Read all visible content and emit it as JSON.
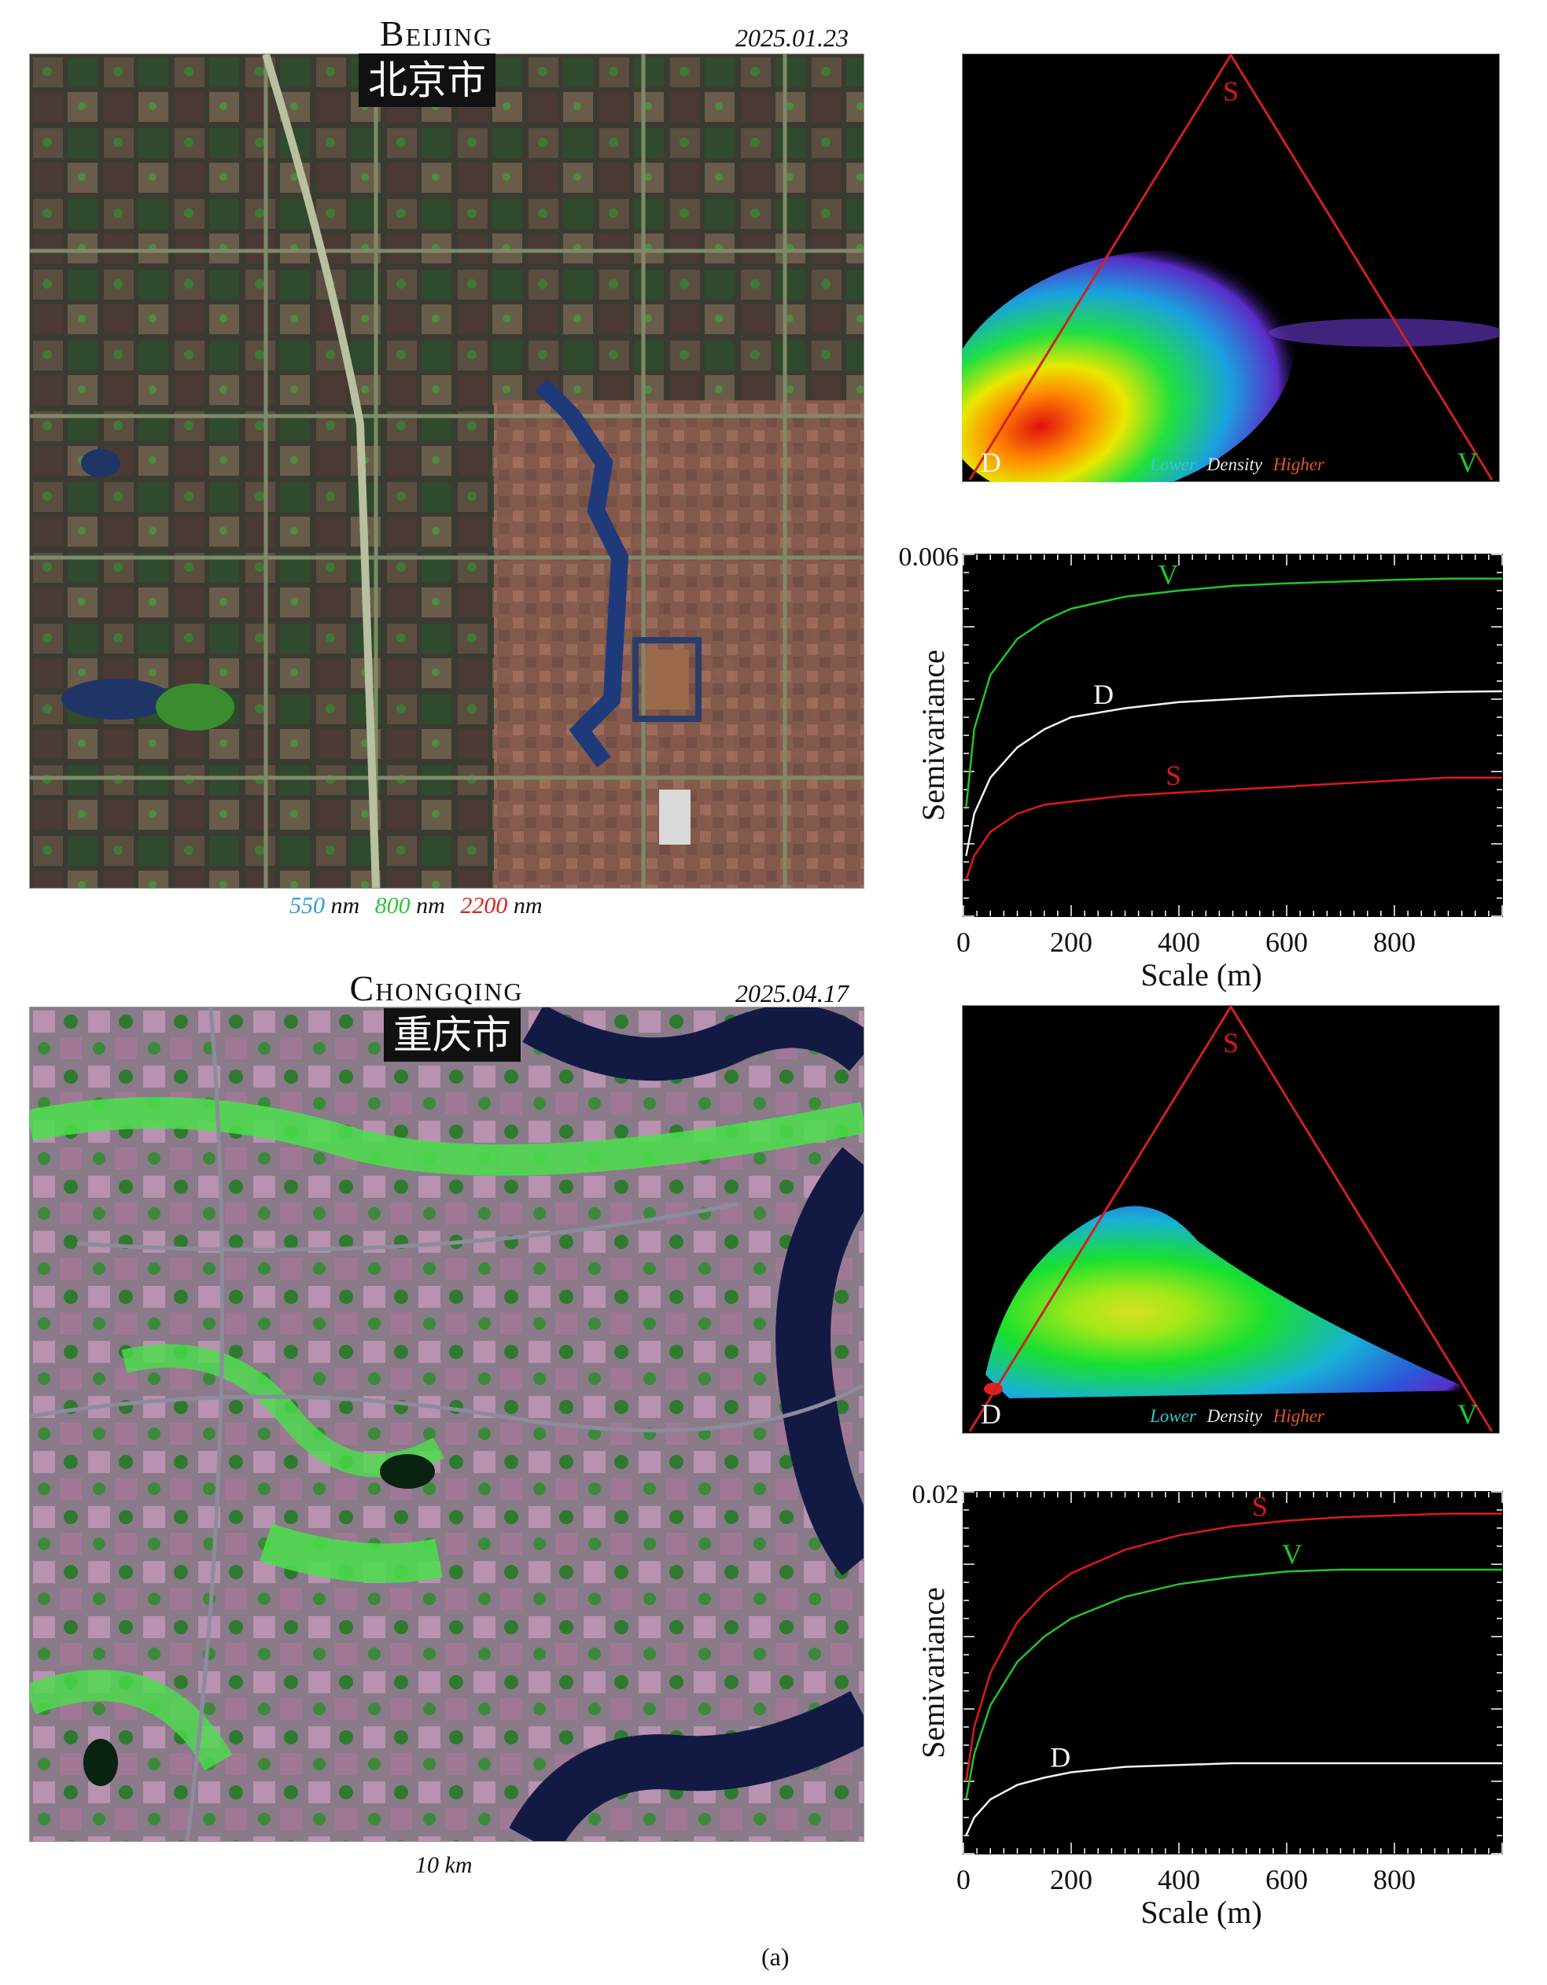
{
  "colors": {
    "S": "#e01818",
    "V": "#22c42a",
    "D": "#f2f2f2",
    "lower": "#33cccc",
    "density": "#e8e8e8",
    "higher": "#e2542a"
  },
  "panels": [
    {
      "city_en": "Beijing",
      "city_zh": "北京市",
      "date": "2025.01.23",
      "map_image": "false-color satellite image of central Beijing",
      "bands": {
        "b1": "550",
        "b2": "800",
        "b3": "2200",
        "unit": "nm"
      },
      "ternary": {
        "apex_top": "S",
        "left": "D",
        "right": "V",
        "legend_lower": "Lower",
        "legend_density": "Density",
        "legend_higher": "Higher"
      }
    },
    {
      "city_en": "Chongqing",
      "city_zh": "重庆市",
      "date": "2025.04.17",
      "map_image": "false-color satellite image of central Chongqing",
      "scale_bar": "10 km",
      "ternary": {
        "apex_top": "S",
        "left": "D",
        "right": "V",
        "legend_lower": "Lower",
        "legend_density": "Density",
        "legend_higher": "Higher"
      }
    }
  ],
  "chart_data": [
    {
      "type": "line",
      "xlabel": "Scale (m)",
      "ylabel": "Semivariance",
      "xlim": [
        0,
        1000
      ],
      "ylim": [
        0,
        0.006
      ],
      "xticks": [
        0,
        200,
        400,
        600,
        800
      ],
      "ytick_label": "0.006",
      "x": [
        5,
        20,
        50,
        100,
        150,
        200,
        300,
        400,
        500,
        600,
        700,
        800,
        900,
        1000
      ],
      "series": [
        {
          "name": "V",
          "values": [
            0.0018,
            0.0031,
            0.004,
            0.0046,
            0.0049,
            0.0051,
            0.0053,
            0.0054,
            0.00548,
            0.00552,
            0.00555,
            0.00558,
            0.0056,
            0.0056
          ]
        },
        {
          "name": "D",
          "values": [
            0.001,
            0.0017,
            0.0023,
            0.0028,
            0.0031,
            0.0033,
            0.00345,
            0.00355,
            0.0036,
            0.00365,
            0.00368,
            0.0037,
            0.00372,
            0.00373
          ]
        },
        {
          "name": "S",
          "values": [
            0.0006,
            0.001,
            0.0014,
            0.0017,
            0.00185,
            0.0019,
            0.002,
            0.00205,
            0.0021,
            0.00215,
            0.0022,
            0.00225,
            0.0023,
            0.0023
          ]
        }
      ],
      "label_positions": {
        "V": 380,
        "D": 260,
        "S": 390
      }
    },
    {
      "type": "line",
      "xlabel": "Scale (m)",
      "ylabel": "Semivariance",
      "xlim": [
        0,
        1000
      ],
      "ylim": [
        0,
        0.02
      ],
      "xticks": [
        0,
        200,
        400,
        600,
        800
      ],
      "ytick_label": "0.02",
      "x": [
        5,
        20,
        50,
        100,
        150,
        200,
        300,
        400,
        500,
        600,
        700,
        800,
        900,
        1000
      ],
      "series": [
        {
          "name": "S",
          "values": [
            0.004,
            0.007,
            0.01,
            0.0128,
            0.0144,
            0.0155,
            0.0168,
            0.0176,
            0.0181,
            0.0184,
            0.0186,
            0.0187,
            0.0188,
            0.0188
          ]
        },
        {
          "name": "V",
          "values": [
            0.003,
            0.0055,
            0.0082,
            0.0106,
            0.012,
            0.013,
            0.0142,
            0.0149,
            0.0153,
            0.0156,
            0.0157,
            0.0157,
            0.0157,
            0.0157
          ]
        },
        {
          "name": "D",
          "values": [
            0.001,
            0.002,
            0.003,
            0.0038,
            0.0042,
            0.0045,
            0.0048,
            0.0049,
            0.005,
            0.005,
            0.005,
            0.005,
            0.005,
            0.005
          ]
        }
      ],
      "label_positions": {
        "S": 550,
        "V": 610,
        "D": 180
      }
    }
  ],
  "caption": "(a)"
}
